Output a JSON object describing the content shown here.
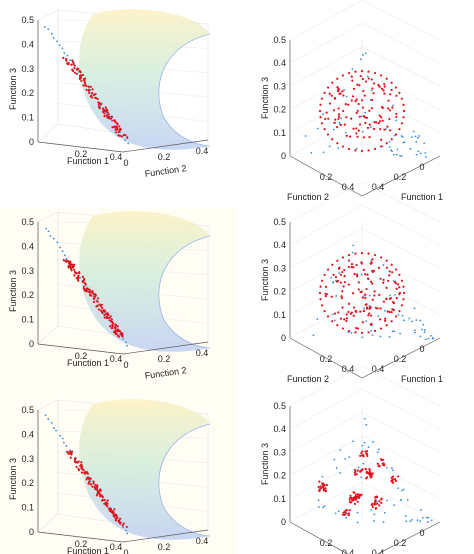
{
  "figure": {
    "panels": [
      {
        "id": "r1-left",
        "row": 1,
        "view": "side",
        "front_set": "sparse-diagonal"
      },
      {
        "id": "r1-right",
        "row": 1,
        "view": "top",
        "pattern": "uniform"
      },
      {
        "id": "r2-left",
        "row": 2,
        "view": "side",
        "front_set": "dense-diagonal"
      },
      {
        "id": "r2-right",
        "row": 2,
        "view": "top",
        "pattern": "uniform-ring"
      },
      {
        "id": "r3-left",
        "row": 3,
        "view": "side",
        "front_set": "clustered-diagonal"
      },
      {
        "id": "r3-right",
        "row": 3,
        "view": "top",
        "pattern": "clustered"
      }
    ]
  },
  "chart_data": [
    {
      "type": "scatter",
      "view": "side",
      "xlabel": "Function 1",
      "ylabel": "Function 2",
      "zlabel": "Function 3",
      "zticks": [
        "0",
        "0.1",
        "0.2",
        "0.3",
        "0.4",
        "0.5"
      ],
      "xticks": [
        "0",
        "0.2",
        "0.4"
      ],
      "yticks": [
        "0",
        "0.2",
        "0.4"
      ],
      "series": [
        {
          "color": "#e0141e",
          "marker": "dot"
        },
        {
          "color": "#3a8fd8",
          "marker": "dot"
        }
      ],
      "surface": "quarter-sphere"
    },
    {
      "type": "scatter",
      "view": "top",
      "xlabel": "Function 1",
      "ylabel": "Function 2",
      "zlabel": "Function 3",
      "zticks": [
        "0",
        "0.1",
        "0.2",
        "0.3",
        "0.4",
        "0.5"
      ],
      "xticks": [
        "0",
        "0.2",
        "0.4"
      ],
      "yticks": [
        "0",
        "0.2",
        "0.4"
      ],
      "series": [
        {
          "color": "#e0141e",
          "marker": "dot"
        },
        {
          "color": "#3a8fd8",
          "marker": "dot"
        }
      ]
    },
    {
      "type": "scatter",
      "view": "side",
      "xlabel": "Function 1",
      "ylabel": "Function 2",
      "zlabel": "Function 3",
      "zticks": [
        "0",
        "0.1",
        "0.2",
        "0.3",
        "0.4",
        "0.5"
      ],
      "xticks": [
        "0",
        "0.2",
        "0.4"
      ],
      "yticks": [
        "0",
        "0.2",
        "0.4"
      ],
      "series": [
        {
          "color": "#e0141e",
          "marker": "dot"
        },
        {
          "color": "#3a8fd8",
          "marker": "dot"
        }
      ],
      "surface": "quarter-sphere"
    },
    {
      "type": "scatter",
      "view": "top",
      "xlabel": "Function 1",
      "ylabel": "Function 2",
      "zlabel": "Function 3",
      "zticks": [
        "0",
        "0.1",
        "0.2",
        "0.3",
        "0.4",
        "0.5"
      ],
      "xticks": [
        "0",
        "0.2",
        "0.4"
      ],
      "yticks": [
        "0",
        "0.2",
        "0.4"
      ],
      "series": [
        {
          "color": "#e0141e",
          "marker": "dot"
        },
        {
          "color": "#3a8fd8",
          "marker": "dot"
        }
      ]
    },
    {
      "type": "scatter",
      "view": "side",
      "xlabel": "Function 1",
      "ylabel": "Function 2",
      "zlabel": "Function 3",
      "zticks": [
        "0",
        "0.1",
        "0.2",
        "0.3",
        "0.4",
        "0.5"
      ],
      "xticks": [
        "0",
        "0.2",
        "0.4"
      ],
      "yticks": [
        "0",
        "0.2",
        "0.4"
      ],
      "series": [
        {
          "color": "#e0141e",
          "marker": "dot"
        },
        {
          "color": "#3a8fd8",
          "marker": "dot"
        }
      ],
      "surface": "quarter-sphere"
    },
    {
      "type": "scatter",
      "view": "top",
      "xlabel": "Function 1",
      "ylabel": "Function 2",
      "zlabel": "Function 3",
      "zticks": [
        "0",
        "0.1",
        "0.2",
        "0.3",
        "0.4",
        "0.5"
      ],
      "xticks": [
        "0",
        "0.2",
        "0.4"
      ],
      "yticks": [
        "0",
        "0.2",
        "0.4"
      ],
      "series": [
        {
          "color": "#e0141e",
          "marker": "dot"
        },
        {
          "color": "#3a8fd8",
          "marker": "dot"
        }
      ]
    }
  ]
}
